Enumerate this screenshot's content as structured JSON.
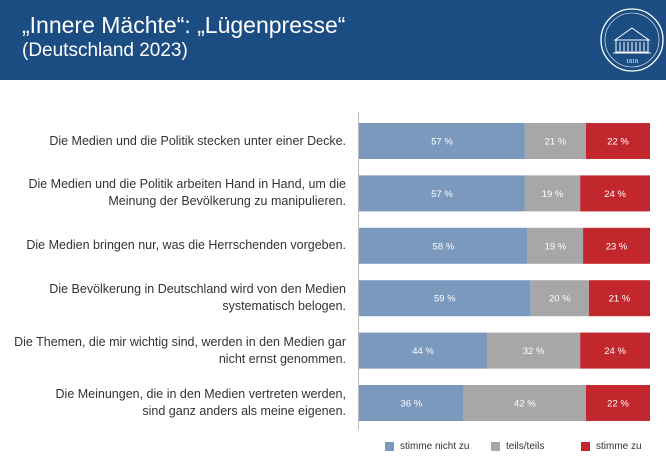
{
  "header": {
    "title": "„Innere Mächte“: „Lügenpresse“",
    "subtitle": "(Deutschland 2023)",
    "logo_year": "1818"
  },
  "colors": {
    "header_bg": "#1b4d82",
    "stimme_nicht_zu": "#7b98bd",
    "teils_teils": "#a7a7a7",
    "stimme_zu": "#c1272d"
  },
  "chart_data": {
    "type": "bar",
    "orientation": "horizontal",
    "stacked": true,
    "title": "„Innere Mächte“: „Lügenpresse“",
    "subtitle": "(Deutschland 2023)",
    "unit": "%",
    "xlim": [
      0,
      100
    ],
    "legend_position": "bottom",
    "categories": [
      [
        "Die Medien und die Politik stecken unter einer Decke."
      ],
      [
        "Die Medien und die Politik arbeiten Hand in Hand, um die",
        "Meinung der Bevölkerung zu manipulieren."
      ],
      [
        "Die Medien bringen nur, was die Herrschenden vorgeben."
      ],
      [
        "Die Bevölkerung in Deutschland wird von den Medien",
        "systematisch belogen."
      ],
      [
        "Die Themen, die mir wichtig sind, werden in den Medien gar",
        "nicht ernst genommen."
      ],
      [
        "Die Meinungen, die in den Medien vertreten werden,",
        "sind ganz anders als meine eigenen."
      ]
    ],
    "series": [
      {
        "name": "stimme nicht zu",
        "color": "#7b98bd",
        "values": [
          57,
          57,
          58,
          59,
          44,
          36
        ],
        "labels": [
          "57 %",
          "57 %",
          "58 %",
          "59 %",
          "44 %",
          "36 %"
        ]
      },
      {
        "name": "teils/teils",
        "color": "#a7a7a7",
        "values": [
          21,
          19,
          19,
          20,
          32,
          42
        ],
        "labels": [
          "21 %",
          "19 %",
          "19 %",
          "20 %",
          "32 %",
          "42 %"
        ]
      },
      {
        "name": "stimme zu",
        "color": "#c1272d",
        "values": [
          22,
          24,
          23,
          21,
          24,
          22
        ],
        "labels": [
          "22 %",
          "24 %",
          "23 %",
          "21 %",
          "24 %",
          "22 %"
        ]
      }
    ]
  }
}
